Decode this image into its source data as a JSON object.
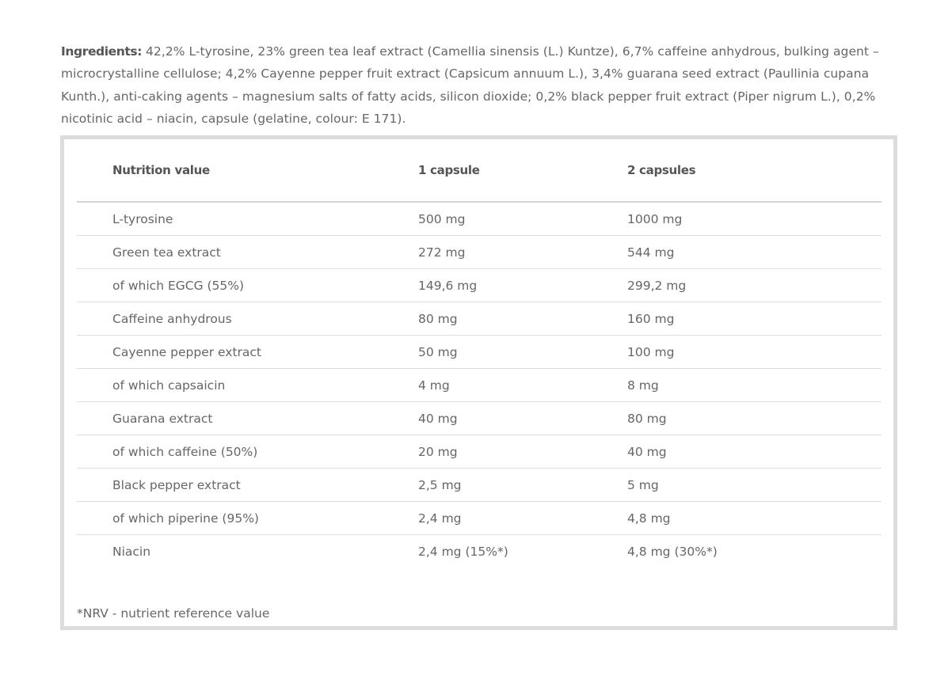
{
  "ingredients": {
    "label": "Ingredients:",
    "text": " 42,2% L-tyrosine, 23% green tea leaf extract (Camellia sinensis (L.) Kuntze), 6,7% caffeine anhydrous, bulking agent – microcrystalline cellulose; 4,2% Cayenne pepper fruit extract (Capsicum annuum L.), 3,4% guarana seed extract (Paullinia cupana Kunth.), anti-caking agents – magnesium salts of fatty acids, silicon dioxide; 0,2% black pepper fruit extract (Piper nigrum L.), 0,2% nicotinic acid – niacin, capsule (gelatine, colour: E 171)."
  },
  "table": {
    "headers": [
      "Nutrition value",
      "1 capsule",
      "2 capsules"
    ],
    "rows": [
      [
        "L-tyrosine",
        "500 mg",
        "1000 mg"
      ],
      [
        "Green tea extract",
        "272 mg",
        "544 mg"
      ],
      [
        "of which EGCG (55%)",
        "149,6 mg",
        "299,2 mg"
      ],
      [
        "Caffeine anhydrous",
        "80 mg",
        "160 mg"
      ],
      [
        "Cayenne pepper extract",
        "50 mg",
        "100 mg"
      ],
      [
        "of which capsaicin",
        "4 mg",
        "8 mg"
      ],
      [
        "Guarana extract",
        "40 mg",
        "80 mg"
      ],
      [
        "of which caffeine (50%)",
        "20 mg",
        "40 mg"
      ],
      [
        "Black pepper extract",
        "2,5 mg",
        "5 mg"
      ],
      [
        "of which piperine (95%)",
        "2,4 mg",
        "4,8 mg"
      ],
      [
        "Niacin",
        "2,4 mg (15%*)",
        "4,8 mg (30%*)"
      ]
    ]
  },
  "footnote": "*NRV - nutrient reference value"
}
